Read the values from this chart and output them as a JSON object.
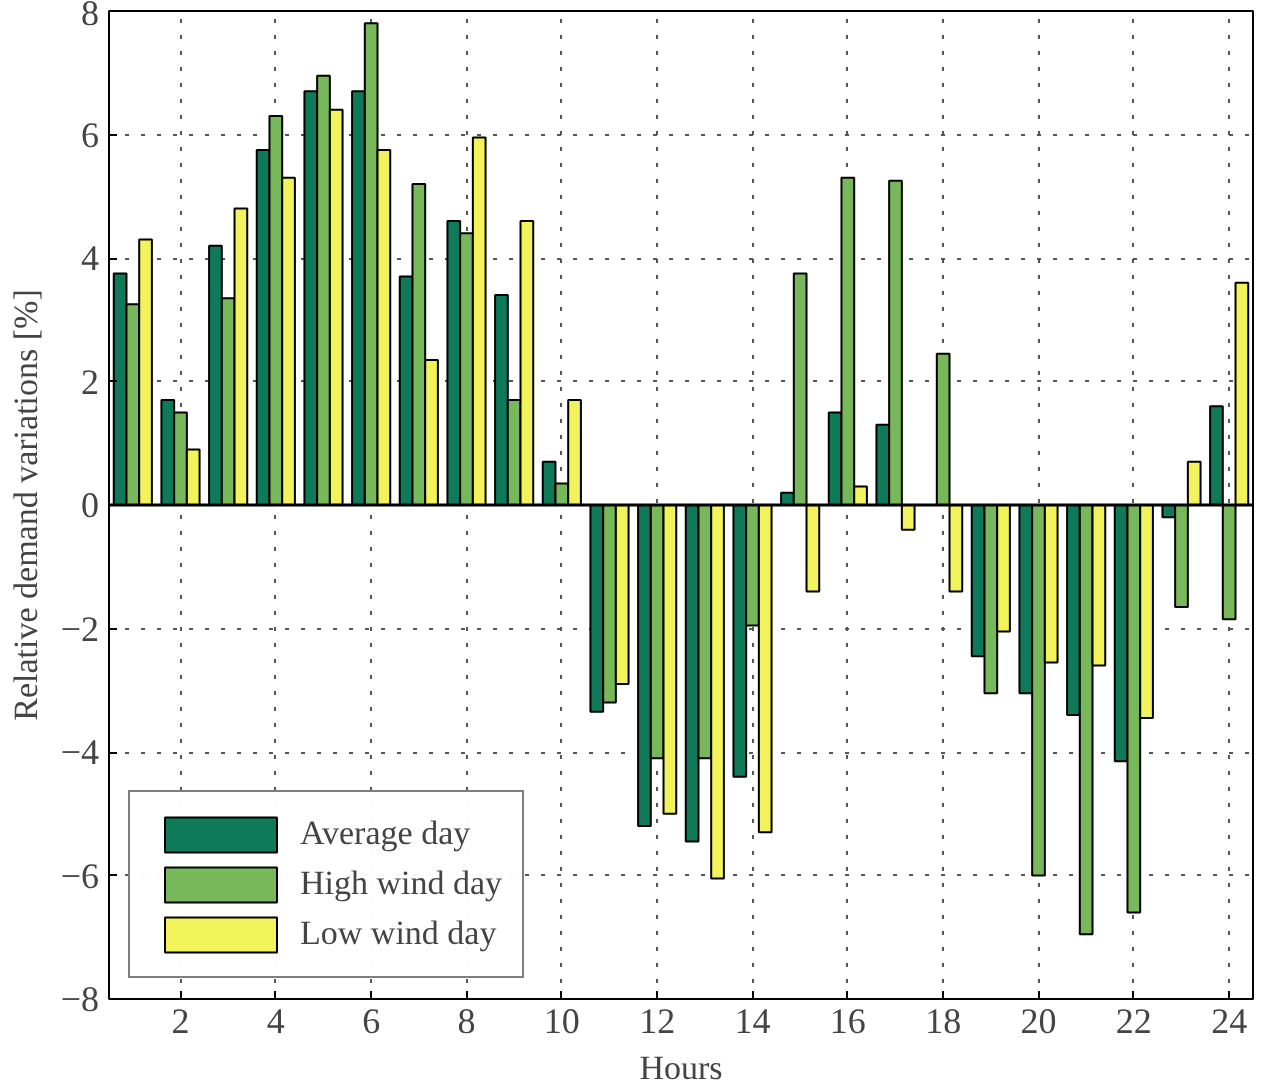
{
  "chart_data": {
    "type": "bar",
    "xlabel": "Hours",
    "ylabel": "Relative demand variations [%]",
    "x": [
      1,
      2,
      3,
      4,
      5,
      6,
      7,
      8,
      9,
      10,
      11,
      12,
      13,
      14,
      15,
      16,
      17,
      18,
      19,
      20,
      21,
      22,
      23,
      24
    ],
    "series": [
      {
        "name": "Average day",
        "color": "#0e7a5a",
        "values": [
          3.75,
          1.7,
          4.2,
          5.75,
          6.7,
          6.7,
          3.7,
          4.6,
          3.4,
          0.7,
          -3.35,
          -5.2,
          -5.45,
          -4.4,
          0.2,
          1.5,
          1.3,
          null,
          -2.45,
          -3.05,
          -3.4,
          -4.15,
          -0.2,
          1.6
        ]
      },
      {
        "name": "High wind day",
        "color": "#77b85a",
        "values": [
          3.25,
          1.5,
          3.35,
          6.3,
          6.95,
          7.8,
          5.2,
          4.4,
          1.7,
          0.35,
          -3.2,
          -4.1,
          -4.1,
          -1.95,
          3.75,
          5.3,
          5.25,
          2.45,
          -3.05,
          -6.0,
          -6.95,
          -6.6,
          -1.65,
          -1.85
        ]
      },
      {
        "name": "Low wind day",
        "color": "#f2f25a",
        "values": [
          4.3,
          0.9,
          4.8,
          5.3,
          6.4,
          5.75,
          2.35,
          5.95,
          4.6,
          1.7,
          -2.9,
          -5.0,
          -6.05,
          -5.3,
          -1.4,
          0.3,
          -0.4,
          -1.4,
          -2.05,
          -2.55,
          -2.6,
          -3.45,
          0.7,
          3.6
        ]
      }
    ],
    "xlim": [
      0.5,
      24.5
    ],
    "ylim": [
      -8,
      8
    ],
    "xticks": [
      2,
      4,
      6,
      8,
      10,
      12,
      14,
      16,
      18,
      20,
      22,
      24
    ],
    "yticks": [
      -8,
      -6,
      -4,
      -2,
      0,
      2,
      4,
      6,
      8
    ],
    "grid": true,
    "legend": "bottom left"
  }
}
